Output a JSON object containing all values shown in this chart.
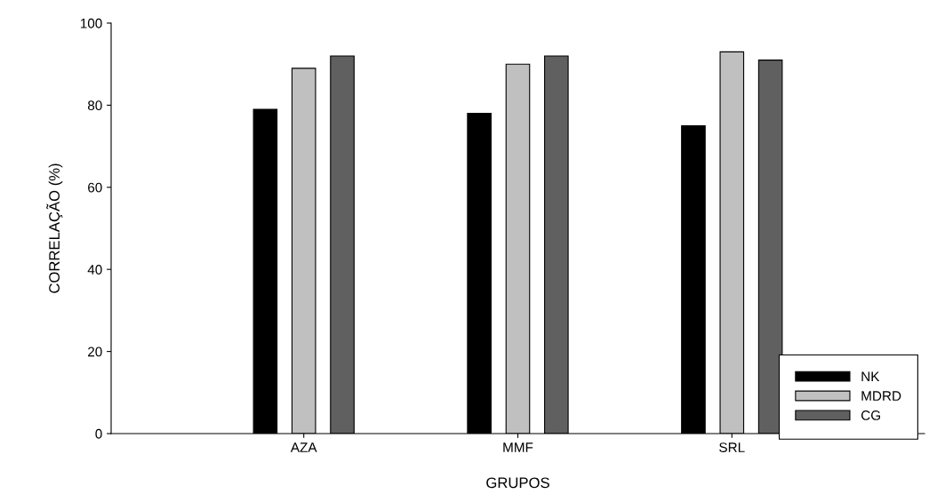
{
  "chart_data": {
    "type": "bar",
    "xlabel": "GRUPOS",
    "ylabel": "CORRELAÇÃO (%)",
    "categories": [
      "AZA",
      "MMF",
      "SRL"
    ],
    "series": [
      {
        "name": "NK",
        "color": "#000000",
        "values": [
          79,
          78,
          75
        ]
      },
      {
        "name": "MDRD",
        "color": "#c0c0c0",
        "values": [
          89,
          90,
          93
        ]
      },
      {
        "name": "CG",
        "color": "#606060",
        "values": [
          92,
          92,
          91
        ]
      }
    ],
    "ylim": [
      0,
      100
    ],
    "yticks": [
      0,
      20,
      40,
      60,
      80,
      100
    ],
    "grid": false,
    "legend": "bottom right"
  }
}
